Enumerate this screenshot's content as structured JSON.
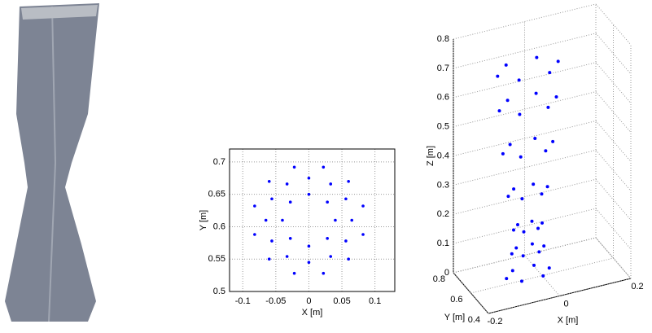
{
  "chart_data": [
    {
      "type": "scatter",
      "xlabel": "X [m]",
      "ylabel": "Y [m]",
      "color": "#0000ff",
      "xlim": [
        -0.12,
        0.13
      ],
      "ylim": [
        0.5,
        0.72
      ],
      "xticks": [
        -0.1,
        -0.05,
        0,
        0.05,
        0.1
      ],
      "yticks": [
        0.5,
        0.55,
        0.6,
        0.65,
        0.7
      ],
      "grid": true,
      "x": [
        0.04,
        0.028,
        0,
        -0.028,
        -0.04,
        -0.028,
        0,
        0.028,
        0.065,
        0.056,
        0.033,
        0,
        -0.033,
        -0.056,
        -0.065,
        -0.056,
        -0.033,
        0,
        0.033,
        0.056,
        0.082,
        0.06,
        0.022,
        -0.022,
        -0.06,
        -0.082,
        -0.082,
        -0.06,
        -0.022,
        0.022,
        0.06,
        0.082
      ],
      "y": [
        0.61,
        0.638,
        0.65,
        0.638,
        0.61,
        0.582,
        0.57,
        0.582,
        0.61,
        0.643,
        0.666,
        0.675,
        0.666,
        0.643,
        0.61,
        0.578,
        0.554,
        0.545,
        0.554,
        0.578,
        0.632,
        0.67,
        0.692,
        0.692,
        0.67,
        0.632,
        0.588,
        0.55,
        0.528,
        0.528,
        0.55,
        0.588
      ]
    },
    {
      "type": "scatter3d",
      "xlabel": "X [m]",
      "ylabel": "Y [m]",
      "zlabel": "Z [m]",
      "color": "#0000ff",
      "xlim": [
        -0.2,
        0.2
      ],
      "ylim": [
        0.4,
        0.8
      ],
      "zlim": [
        0,
        0.8
      ],
      "xticks": [
        -0.2,
        0,
        0.2
      ],
      "yticks": [
        0.4,
        0.6,
        0.8
      ],
      "zticks": [
        0,
        0.1,
        0.2,
        0.3,
        0.4,
        0.5,
        0.6,
        0.7,
        0.8
      ],
      "grid": true,
      "x": [
        0.02,
        -0.01,
        -0.07,
        -0.1,
        -0.07,
        -0.01,
        0.005,
        -0.018,
        -0.063,
        -0.085,
        -0.063,
        -0.018,
        0,
        -0.02,
        -0.06,
        -0.08,
        -0.06,
        -0.02,
        0.015,
        -0.013,
        -0.068,
        -0.095,
        -0.068,
        -0.013,
        0.03,
        -0.005,
        -0.075,
        -0.11,
        -0.075,
        -0.005,
        0.04,
        0,
        -0.08,
        -0.12,
        -0.08,
        0,
        0.045,
        0.003,
        -0.083,
        -0.125,
        -0.083,
        0.003
      ],
      "y": [
        0.6,
        0.652,
        0.652,
        0.6,
        0.548,
        0.548,
        0.6,
        0.639,
        0.639,
        0.6,
        0.561,
        0.561,
        0.6,
        0.635,
        0.635,
        0.6,
        0.565,
        0.565,
        0.6,
        0.648,
        0.648,
        0.6,
        0.552,
        0.552,
        0.6,
        0.661,
        0.661,
        0.6,
        0.539,
        0.539,
        0.6,
        0.669,
        0.669,
        0.6,
        0.531,
        0.531,
        0.6,
        0.674,
        0.674,
        0.6,
        0.526,
        0.526
      ],
      "z": [
        0.02,
        0.02,
        0.02,
        0.02,
        0.02,
        0.02,
        0.1,
        0.1,
        0.1,
        0.1,
        0.1,
        0.1,
        0.18,
        0.18,
        0.18,
        0.18,
        0.18,
        0.18,
        0.3,
        0.3,
        0.3,
        0.3,
        0.3,
        0.3,
        0.45,
        0.45,
        0.45,
        0.45,
        0.45,
        0.45,
        0.6,
        0.6,
        0.6,
        0.6,
        0.6,
        0.6,
        0.72,
        0.72,
        0.72,
        0.72,
        0.72,
        0.72
      ]
    }
  ]
}
